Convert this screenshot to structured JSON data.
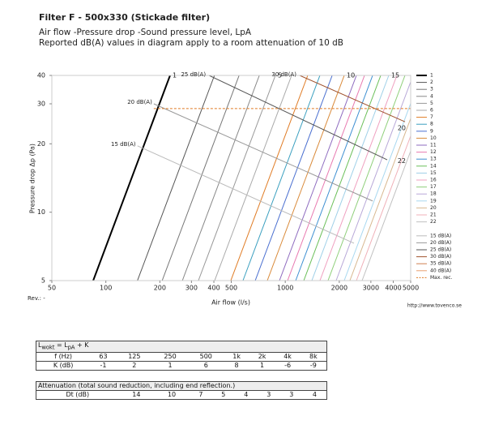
{
  "header": {
    "title": "Filter F - 500x330 (Stickade filter)",
    "subtitle": [
      "Air flow -Pressure drop -Sound pressure level, LpA",
      "Reported dB(A) values in diagram apply to a room attenuation of 10 dB"
    ]
  },
  "chart_data": {
    "type": "line",
    "x_label": "Air flow (l/s)",
    "y_label": "Pressure drop Δp (Pa)",
    "x_scale": "log",
    "y_scale": "log",
    "xlim": [
      50,
      5000
    ],
    "ylim": [
      5,
      40
    ],
    "xticks": [
      50,
      100,
      200,
      300,
      400,
      500,
      1000,
      2000,
      3000,
      4000,
      5000
    ],
    "yticks": [
      5,
      10,
      20,
      30,
      40
    ],
    "legend": "right",
    "series": [
      {
        "name": "1",
        "color": "#000000",
        "linewidth": 2,
        "x": [
          85,
          228
        ],
        "values": [
          5,
          40
        ]
      },
      {
        "name": "2",
        "color": "#555555",
        "x": [
          150,
          403
        ],
        "values": [
          5,
          40
        ]
      },
      {
        "name": "3",
        "color": "#777777",
        "x": [
          206,
          553
        ],
        "values": [
          5,
          40
        ]
      },
      {
        "name": "4",
        "color": "#888888",
        "x": [
          267,
          717
        ],
        "values": [
          5,
          40
        ]
      },
      {
        "name": "5",
        "color": "#999999",
        "x": [
          328,
          881
        ],
        "values": [
          5,
          40
        ]
      },
      {
        "name": "6",
        "color": "#aaaaaa",
        "x": [
          404,
          1085
        ],
        "values": [
          5,
          40
        ]
      },
      {
        "name": "7",
        "color": "#e07b24",
        "x": [
          497,
          1334
        ],
        "values": [
          5,
          40
        ]
      },
      {
        "name": "8",
        "color": "#3a9fbf",
        "x": [
          581,
          1560
        ],
        "values": [
          5,
          40
        ]
      },
      {
        "name": "9",
        "color": "#4a6fd0",
        "x": [
          680,
          1826
        ],
        "values": [
          5,
          40
        ]
      },
      {
        "name": "10",
        "color": "#d98a3a",
        "x": [
          794,
          2132
        ],
        "values": [
          5,
          40
        ]
      },
      {
        "name": "11",
        "color": "#8e6bbf",
        "x": [
          928,
          2492
        ],
        "values": [
          5,
          40
        ]
      },
      {
        "name": "12",
        "color": "#e87ab0",
        "x": [
          1030,
          2766
        ],
        "values": [
          5,
          40
        ]
      },
      {
        "name": "13",
        "color": "#3d8fd1",
        "x": [
          1143,
          3069
        ],
        "values": [
          5,
          40
        ]
      },
      {
        "name": "14",
        "color": "#6bbf59",
        "x": [
          1268,
          3405
        ],
        "values": [
          5,
          40
        ]
      },
      {
        "name": "15",
        "color": "#9fd0e8",
        "x": [
          1406,
          3775
        ],
        "values": [
          5,
          40
        ]
      },
      {
        "name": "16",
        "color": "#f0a0c0",
        "x": [
          1560,
          4189
        ],
        "values": [
          5,
          40
        ]
      },
      {
        "name": "17",
        "color": "#8fcf7a",
        "x": [
          1731,
          4648
        ],
        "values": [
          5,
          40
        ]
      },
      {
        "name": "18",
        "color": "#b8a8d8",
        "x": [
          1921,
          5158
        ],
        "values": [
          5,
          40
        ]
      },
      {
        "name": "19",
        "color": "#a8d8f0",
        "x": [
          2131,
          5722
        ],
        "values": [
          5,
          40
        ]
      },
      {
        "name": "20",
        "color": "#d8b890",
        "x": [
          2291,
          6151
        ],
        "values": [
          5,
          40
        ]
      },
      {
        "name": "21",
        "color": "#f0b0b8",
        "x": [
          2492,
          6691
        ],
        "values": [
          5,
          40
        ]
      },
      {
        "name": "22",
        "color": "#c0c0c0",
        "x": [
          2680,
          7196
        ],
        "values": [
          5,
          40
        ]
      },
      {
        "name": "15 dB(A)",
        "color": "#bbbbbb",
        "x": [
          150,
          2415
        ],
        "values": [
          19.6,
          7.3
        ]
      },
      {
        "name": "20 dB(A)",
        "color": "#999999",
        "x": [
          185,
          3070
        ],
        "values": [
          30,
          11.2
        ]
      },
      {
        "name": "25 dB(A)",
        "color": "#555555",
        "x": [
          376,
          3700
        ],
        "values": [
          40,
          17
        ]
      },
      {
        "name": "30 dB(A)",
        "color": "#a0522d",
        "x": [
          1203,
          4650
        ],
        "values": [
          40,
          25
        ]
      },
      {
        "name": "35 dB(A)",
        "color": "#d08050",
        "x": [],
        "values": []
      },
      {
        "name": "40 dB(A)",
        "color": "#e8a070",
        "x": [],
        "values": []
      },
      {
        "name": "Max. rec.",
        "color": "#e07b24",
        "dashed": true,
        "x": [
          185,
          5000
        ],
        "values": [
          28.6,
          28.6
        ]
      }
    ]
  },
  "footer": {
    "rev": "Rev.: -",
    "url": "http://www.tovenco.se"
  },
  "tables": [
    {
      "title": [
        "L",
        "wokt",
        " = L",
        "pA",
        " + K"
      ],
      "rows": [
        [
          "f (Hz)",
          "63",
          "125",
          "250",
          "500",
          "1k",
          "2k",
          "4k",
          "8k"
        ],
        [
          "K (dB)",
          "-1",
          "2",
          "1",
          "6",
          "8",
          "1",
          "-6",
          "-9"
        ]
      ]
    },
    {
      "title": [
        "Attenuation (total sound reduction, including end reflection.)"
      ],
      "rows": [
        [
          "Dt (dB)",
          "14",
          "10",
          "7",
          "5",
          "4",
          "3",
          "3",
          "4"
        ]
      ]
    }
  ]
}
